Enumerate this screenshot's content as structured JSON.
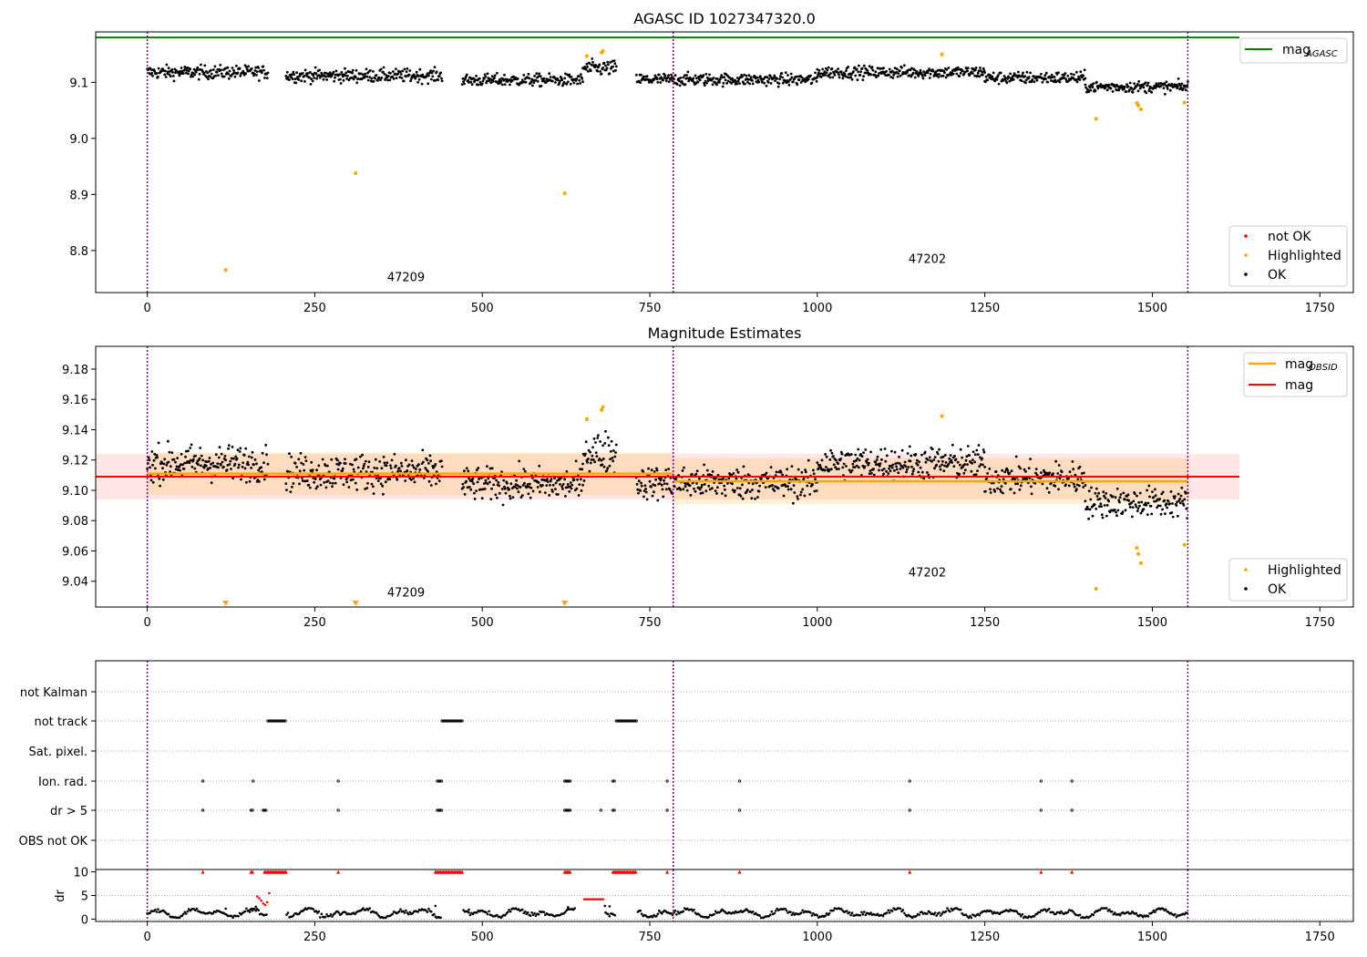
{
  "figure": {
    "background": "#ffffff",
    "colors": {
      "ok": "#000000",
      "highlighted": "#ffa500",
      "not_ok": "#ff0000",
      "mag_agasc": "#008000",
      "mag": "#ff0000",
      "mag_obsid": "#ffa500",
      "obs_boundary": "#800080"
    }
  },
  "chart_data": [
    {
      "type": "scatter",
      "title": "AGASC ID 1027347320.0",
      "xlabel": "",
      "ylabel": "",
      "xlim": [
        -77,
        1800
      ],
      "ylim": [
        8.725,
        9.19
      ],
      "xticks": [
        0,
        250,
        500,
        750,
        1000,
        1250,
        1500,
        1750
      ],
      "yticks": [
        8.8,
        8.9,
        9.0,
        9.1
      ],
      "ytick_format": 1,
      "grid": false,
      "hlines": [
        {
          "name": "mag_AGASC",
          "y": 9.18,
          "x_start": -77,
          "x_end": 1630,
          "color": "#008000"
        }
      ],
      "obs_boundaries": [
        0,
        785,
        1553
      ],
      "obsid_labels": [
        {
          "text": "47209",
          "x": 392,
          "y": 8.745
        },
        {
          "text": "47202",
          "x": 1170,
          "y": 8.778
        }
      ],
      "ok_segments": [
        {
          "x_start": 0,
          "x_end": 180,
          "mean": 9.118,
          "scatter": 0.012
        },
        {
          "x_start": 207,
          "x_end": 440,
          "mean": 9.112,
          "scatter": 0.012
        },
        {
          "x_start": 470,
          "x_end": 650,
          "mean": 9.104,
          "scatter": 0.011
        },
        {
          "x_start": 650,
          "x_end": 700,
          "mean": 9.125,
          "scatter": 0.014
        },
        {
          "x_start": 730,
          "x_end": 1000,
          "mean": 9.105,
          "scatter": 0.011
        },
        {
          "x_start": 1000,
          "x_end": 1250,
          "mean": 9.118,
          "scatter": 0.011
        },
        {
          "x_start": 1250,
          "x_end": 1400,
          "mean": 9.108,
          "scatter": 0.011
        },
        {
          "x_start": 1400,
          "x_end": 1553,
          "mean": 9.092,
          "scatter": 0.01
        }
      ],
      "series": [
        {
          "name": "Highlighted",
          "color": "#ffa500",
          "points": [
            [
              117,
              8.765
            ],
            [
              311,
              8.938
            ],
            [
              623,
              8.902
            ],
            [
              656,
              9.147
            ],
            [
              678,
              9.153
            ],
            [
              680,
              9.156
            ],
            [
              1186,
              9.15
            ],
            [
              1416,
              9.035
            ],
            [
              1477,
              9.063
            ],
            [
              1479,
              9.059
            ],
            [
              1483,
              9.052
            ],
            [
              1548,
              9.064
            ]
          ]
        }
      ],
      "legend": {
        "placement": "top-right",
        "entries": [
          {
            "label": "mag",
            "subscript": "AGASC"
          }
        ]
      },
      "legend2": {
        "placement": "bottom-right",
        "entries": [
          {
            "label": "not OK"
          },
          {
            "label": "Highlighted"
          },
          {
            "label": "OK"
          }
        ]
      }
    },
    {
      "type": "scatter",
      "title": "Magnitude Estimates",
      "xlabel": "",
      "ylabel": "",
      "xlim": [
        -77,
        1800
      ],
      "ylim": [
        9.023,
        9.195
      ],
      "xticks": [
        0,
        250,
        500,
        750,
        1000,
        1250,
        1500,
        1750
      ],
      "yticks": [
        9.04,
        9.06,
        9.08,
        9.1,
        9.12,
        9.14,
        9.16,
        9.18
      ],
      "ytick_format": 2,
      "grid": false,
      "mag_line": {
        "y": 9.109,
        "lo": 9.094,
        "hi": 9.124,
        "x_start": -77,
        "x_end": 1630
      },
      "obsid_mags": [
        {
          "x_start": 0,
          "x_end": 785,
          "mag": 9.111,
          "lo": 9.097,
          "hi": 9.125
        },
        {
          "x_start": 785,
          "x_end": 1553,
          "mag": 9.106,
          "lo": 9.091,
          "hi": 9.121
        }
      ],
      "obs_boundaries": [
        0,
        785,
        1553
      ],
      "obsid_labels": [
        {
          "text": "47209",
          "x": 392,
          "y": 9.03
        },
        {
          "text": "47202",
          "x": 1170,
          "y": 9.043
        }
      ],
      "ok_segments": [
        {
          "x_start": 0,
          "x_end": 180,
          "mean": 9.118,
          "scatter": 0.012
        },
        {
          "x_start": 207,
          "x_end": 440,
          "mean": 9.112,
          "scatter": 0.012
        },
        {
          "x_start": 470,
          "x_end": 650,
          "mean": 9.104,
          "scatter": 0.011
        },
        {
          "x_start": 650,
          "x_end": 700,
          "mean": 9.125,
          "scatter": 0.014
        },
        {
          "x_start": 730,
          "x_end": 1000,
          "mean": 9.105,
          "scatter": 0.011
        },
        {
          "x_start": 1000,
          "x_end": 1250,
          "mean": 9.118,
          "scatter": 0.011
        },
        {
          "x_start": 1250,
          "x_end": 1400,
          "mean": 9.108,
          "scatter": 0.011
        },
        {
          "x_start": 1400,
          "x_end": 1553,
          "mean": 9.092,
          "scatter": 0.01
        }
      ],
      "series": [
        {
          "name": "Highlighted",
          "color": "#ffa500",
          "points": [
            [
              656,
              9.147
            ],
            [
              678,
              9.153
            ],
            [
              680,
              9.155
            ],
            [
              1186,
              9.149
            ],
            [
              1416,
              9.035
            ],
            [
              1477,
              9.062
            ],
            [
              1479,
              9.058
            ],
            [
              1483,
              9.052
            ],
            [
              1548,
              9.064
            ]
          ]
        }
      ],
      "offscale_markers": [
        117,
        311,
        623
      ],
      "legend": {
        "placement": "top-right",
        "entries": [
          {
            "label": "mag",
            "subscript": "OBSID"
          },
          {
            "label": "mag"
          }
        ]
      },
      "legend2": {
        "placement": "bottom-right",
        "entries": [
          {
            "label": "Highlighted"
          },
          {
            "label": "OK"
          }
        ]
      }
    },
    {
      "type": "scatter",
      "title": "",
      "xlabel": "",
      "ylabel": "",
      "xlim": [
        -77,
        1800
      ],
      "categories": [
        "not Kalman",
        "not track",
        "Sat. pixel.",
        "Ion. rad.",
        "dr > 5",
        "OBS not OK"
      ],
      "obs_boundaries": [
        0,
        785,
        1553
      ],
      "flags": {
        "not Kalman": [],
        "not track": [
          [
            180,
            207
          ],
          [
            440,
            470
          ],
          [
            700,
            730
          ]
        ],
        "Sat. pixel.": [],
        "Ion. rad.": [
          [
            83,
            83
          ],
          [
            158,
            158
          ],
          [
            285,
            285
          ],
          [
            433,
            440
          ],
          [
            623,
            632
          ],
          [
            695,
            697
          ],
          [
            776,
            776
          ],
          [
            884,
            884
          ],
          [
            1138,
            1138
          ],
          [
            1334,
            1334
          ],
          [
            1380,
            1380
          ]
        ],
        "dr > 5": [
          [
            83,
            83
          ],
          [
            155,
            158
          ],
          [
            173,
            178
          ],
          [
            285,
            285
          ],
          [
            433,
            440
          ],
          [
            623,
            632
          ],
          [
            677,
            677
          ],
          [
            695,
            697
          ],
          [
            776,
            776
          ],
          [
            884,
            884
          ],
          [
            1138,
            1138
          ],
          [
            1334,
            1334
          ],
          [
            1380,
            1380
          ]
        ],
        "OBS not OK": []
      }
    },
    {
      "type": "scatter",
      "title": "",
      "xlabel": "",
      "ylabel": "dr",
      "xlim": [
        -77,
        1800
      ],
      "ylim": [
        -0.5,
        10.5
      ],
      "xticks": [
        0,
        250,
        500,
        750,
        1000,
        1250,
        1500,
        1750
      ],
      "yticks": [
        0,
        5,
        10
      ],
      "grid_y": [
        0,
        5
      ],
      "obs_boundaries": [
        0,
        785,
        1553
      ],
      "dr_ok_range": [
        0.3,
        2.3
      ],
      "dr_spikes": [
        [
          117,
          2.2
        ],
        [
          153,
          1.5
        ],
        [
          157,
          1.8
        ],
        [
          162,
          2.6
        ],
        [
          430,
          2.8
        ],
        [
          480,
          2.0
        ],
        [
          628,
          2.5
        ],
        [
          683,
          2.8
        ],
        [
          690,
          2.7
        ]
      ],
      "dr_gaps": [
        [
          180,
          207
        ],
        [
          440,
          470
        ],
        [
          640,
          682
        ],
        [
          700,
          730
        ]
      ],
      "dr_red_curve": [
        [
          164,
          4.8
        ],
        [
          167,
          4.4
        ],
        [
          170,
          3.9
        ],
        [
          173,
          3.3
        ],
        [
          176,
          3.0
        ],
        [
          179,
          3.6
        ],
        [
          182,
          5.5
        ]
      ],
      "dr_red_flat": {
        "x_start": 652,
        "x_end": 681,
        "y": 4.2
      },
      "dr_clipped": [
        [
          83,
          83
        ],
        [
          155,
          158
        ],
        [
          175,
          207
        ],
        [
          285,
          285
        ],
        [
          430,
          470
        ],
        [
          623,
          632
        ],
        [
          695,
          730
        ],
        [
          776,
          776
        ],
        [
          884,
          884
        ],
        [
          1138,
          1138
        ],
        [
          1334,
          1334
        ],
        [
          1380,
          1380
        ]
      ]
    }
  ]
}
